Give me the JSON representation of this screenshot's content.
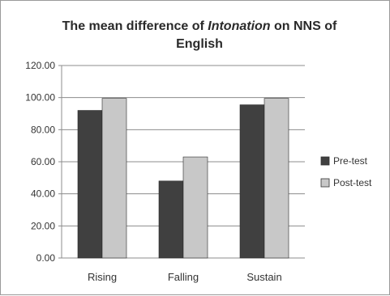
{
  "chart_data": {
    "type": "bar",
    "title_parts": [
      {
        "text": "The mean difference of ",
        "italic": false
      },
      {
        "text": "Intonation",
        "italic": true
      },
      {
        "text": " on NNS of",
        "italic": false
      }
    ],
    "title_line2": "English",
    "categories": [
      "Rising",
      "Falling",
      "Sustain"
    ],
    "series": [
      {
        "name": "Pre-test",
        "values": [
          92,
          48,
          95.5
        ],
        "color": "#404040"
      },
      {
        "name": "Post-test",
        "values": [
          99.5,
          63,
          99.5
        ],
        "color": "#c8c8c8"
      }
    ],
    "ylim": [
      0,
      120
    ],
    "yticks": [
      "0.00",
      "20.00",
      "40.00",
      "60.00",
      "80.00",
      "100.00",
      "120.00"
    ],
    "grid": true,
    "legend_position": "right"
  }
}
